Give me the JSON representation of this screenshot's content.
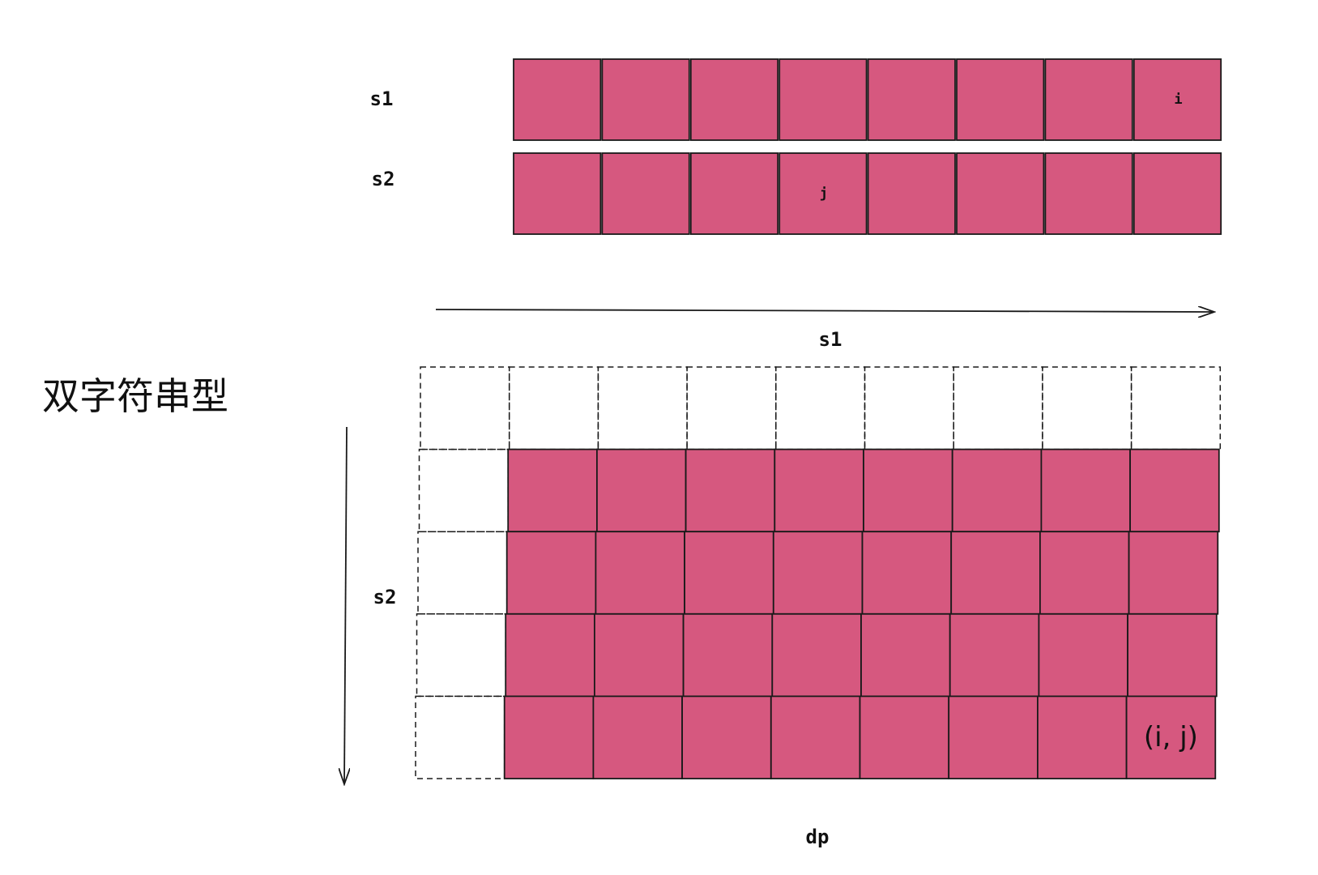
{
  "title": "双字符串型",
  "colors": {
    "cell_fill": "#d6587f",
    "stroke": "#1a1a1a",
    "background": "#ffffff"
  },
  "strings": {
    "s1": {
      "label": "s1",
      "length": 8,
      "marked_index": 7,
      "marked_label": "i"
    },
    "s2": {
      "label": "s2",
      "length": 8,
      "marked_index": 3,
      "marked_label": "j"
    }
  },
  "dp_table": {
    "label": "dp",
    "axis_x_label": "s1",
    "axis_y_label": "s2",
    "columns": 9,
    "rows": 5,
    "base_row_dashed": true,
    "base_col_dashed": true,
    "target_cell_label": "(i, j)"
  }
}
